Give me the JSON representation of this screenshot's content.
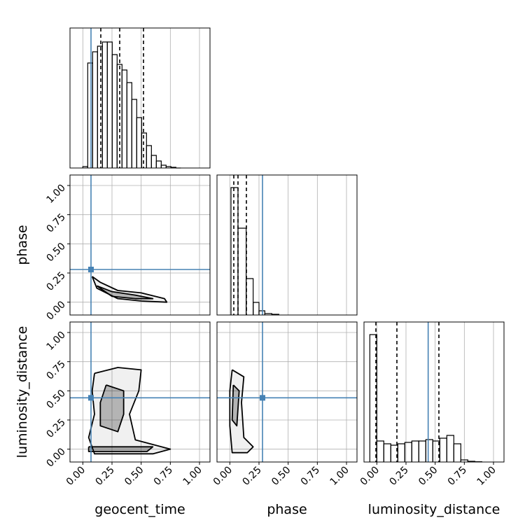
{
  "chart_data": {
    "type": "corner",
    "parameters": [
      "geocent_time",
      "phase",
      "luminosity_distance"
    ],
    "xlim": [
      -0.11,
      1.09
    ],
    "xticks": [
      {
        "value": 0,
        "label": "0.00"
      },
      {
        "value": 0.25,
        "label": "0.25"
      },
      {
        "value": 0.5,
        "label": "0.50"
      },
      {
        "value": 0.75,
        "label": "0.75"
      },
      {
        "value": 1,
        "label": "1.00"
      }
    ],
    "grid": true,
    "truths": [
      0.07,
      0.28,
      0.44
    ],
    "truth_color": "#4682b4",
    "quantiles": [
      [
        0.154,
        0.316,
        0.52
      ],
      [
        0.034,
        0.07,
        0.142
      ],
      [
        -0.008,
        0.172,
        0.532
      ]
    ],
    "hist_ylim": [
      0,
      1
    ],
    "histograms": [
      {
        "bins": [
          0,
          0.042,
          0.084,
          0.126,
          0.168,
          0.21,
          0.252,
          0.294,
          0.336,
          0.378,
          0.42,
          0.462,
          0.504,
          0.546,
          0.588,
          0.63,
          0.672,
          0.714,
          0.756,
          0.798,
          0.84
        ],
        "values": [
          0.01,
          0.75,
          0.83,
          0.87,
          0.9,
          0.9,
          0.81,
          0.74,
          0.7,
          0.61,
          0.49,
          0.36,
          0.25,
          0.16,
          0.09,
          0.05,
          0.02,
          0.01,
          0.005,
          0
        ]
      },
      {
        "bins": [
          0.01,
          0.07,
          0.14,
          0.2,
          0.25,
          0.3,
          0.36,
          0.42
        ],
        "values": [
          0.91,
          0.62,
          0.26,
          0.09,
          0.03,
          0.01,
          0.005
        ]
      },
      {
        "bins": [
          -0.06,
          0,
          0.06,
          0.12,
          0.18,
          0.24,
          0.3,
          0.36,
          0.42,
          0.48,
          0.54,
          0.6,
          0.66,
          0.72,
          0.78,
          0.84,
          0.9
        ],
        "values": [
          0.91,
          0.15,
          0.13,
          0.12,
          0.13,
          0.14,
          0.15,
          0.15,
          0.16,
          0.15,
          0.17,
          0.19,
          0.13,
          0.015,
          0.005,
          0.002
        ]
      }
    ],
    "contours": [
      {
        "x_param": 0,
        "y_param": 1,
        "levels": [
          {
            "x": [
              0.08,
              0.15,
              0.3,
              0.5,
              0.7,
              0.72,
              0.5,
              0.3,
              0.12,
              0.08
            ],
            "y": [
              0.22,
              0.17,
              0.1,
              0.08,
              0.03,
              0,
              0.01,
              0.03,
              0.12,
              0.22
            ]
          },
          {
            "x": [
              0.12,
              0.25,
              0.45,
              0.6,
              0.45,
              0.25,
              0.12
            ],
            "y": [
              0.14,
              0.09,
              0.06,
              0.03,
              0.03,
              0.05,
              0.14
            ]
          }
        ]
      },
      {
        "x_param": 0,
        "y_param": 2,
        "levels": [
          {
            "x": [
              0.1,
              0.3,
              0.5,
              0.48,
              0.4,
              0.45,
              0.75,
              0.6,
              0.1,
              0.05,
              0.1,
              0.08,
              0.1
            ],
            "y": [
              0.65,
              0.7,
              0.68,
              0.5,
              0.3,
              0.08,
              0,
              -0.04,
              -0.04,
              0.1,
              0.3,
              0.5,
              0.65
            ]
          },
          {
            "x": [
              0.2,
              0.35,
              0.35,
              0.3,
              0.15,
              0.15,
              0.2
            ],
            "y": [
              0.55,
              0.5,
              0.3,
              0.15,
              0.2,
              0.4,
              0.55
            ]
          },
          {
            "x": [
              0.05,
              0.6,
              0.55,
              0.05,
              0.05
            ],
            "y": [
              0.02,
              0.02,
              -0.02,
              -0.02,
              0.02
            ]
          }
        ]
      },
      {
        "x_param": 1,
        "y_param": 2,
        "levels": [
          {
            "x": [
              0.02,
              0.12,
              0.1,
              0.12,
              0.2,
              0.15,
              0.02,
              0,
              0,
              0.02
            ],
            "y": [
              0.68,
              0.62,
              0.4,
              0.1,
              0.02,
              -0.03,
              -0.03,
              0.2,
              0.5,
              0.68
            ]
          },
          {
            "x": [
              0.03,
              0.08,
              0.06,
              0.02,
              0.03
            ],
            "y": [
              0.55,
              0.5,
              0.2,
              0.25,
              0.55
            ]
          }
        ]
      }
    ]
  }
}
